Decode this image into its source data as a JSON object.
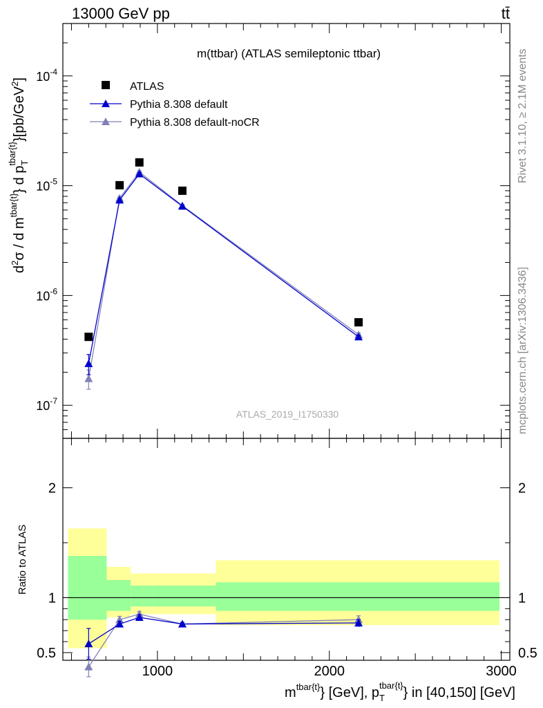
{
  "header": {
    "left": "13000 GeV pp",
    "right": "tt̄"
  },
  "side": {
    "rivet": "Rivet 3.1.10, ≥ 2.1M events",
    "mcplots": "mcplots.cern.ch [arXiv:1306.3436]"
  },
  "colors": {
    "atlas": "#000000",
    "default": "#0000cc",
    "noCR": "#8080b8",
    "band_inner": "#99ff99",
    "band_outer": "#ffff99"
  },
  "chart_data": [
    {
      "type": "scatter",
      "title": "m(ttbar) (ATLAS semileptonic ttbar)",
      "watermark": "ATLAS_2019_I1750330",
      "ylabel": "d²σ / d m^{tbar{t}} d p_T^{tbar{t}} [pb/GeV²]",
      "yscale": "log",
      "ylim": [
        5e-08,
        0.0003
      ],
      "xlim": [
        450,
        3050
      ],
      "ytick_labels": [
        "10^{-7}",
        "10^{-6}",
        "10^{-5}",
        "10^{-4}"
      ],
      "legend_position": "top-left",
      "series": [
        {
          "name": "ATLAS",
          "marker": "square",
          "x": [
            600,
            780,
            895,
            1145,
            2170
          ],
          "y": [
            4.2e-07,
            1.01e-05,
            1.63e-05,
            9e-06,
            5.7e-07
          ]
        },
        {
          "name": "Pythia 8.308 default",
          "marker": "triangle",
          "x": [
            600,
            780,
            895,
            1145,
            2170
          ],
          "y": [
            2.4e-07,
            7.4e-06,
            1.28e-05,
            6.5e-06,
            4.2e-07
          ],
          "yerr": [
            5e-08,
            3e-07,
            4e-07,
            1.5e-07,
            1.5e-08
          ]
        },
        {
          "name": "Pythia 8.308 default-noCR",
          "marker": "triangle",
          "x": [
            600,
            780,
            895,
            1145,
            2170
          ],
          "y": [
            1.75e-07,
            7.7e-06,
            1.33e-05,
            6.6e-06,
            4.4e-07
          ],
          "yerr": [
            3.5e-08,
            3e-07,
            4e-07,
            1.5e-07,
            1.5e-08
          ]
        }
      ]
    },
    {
      "type": "scatter",
      "ylabel": "Ratio to ATLAS",
      "xlabel": "m^{tbar{t}} [GeV], p_T^{tbar{t}} in [40,150] [GeV]",
      "ylim": [
        0.43,
        2.45
      ],
      "xlim": [
        450,
        3050
      ],
      "x_ticks": [
        1000,
        2000,
        3000
      ],
      "x_tick_labels": [
        "1000",
        "2000",
        "3000"
      ],
      "y_ticks": [
        0.5,
        1,
        2
      ],
      "y_tick_labels": [
        "0.5",
        "1",
        "2"
      ],
      "bands": [
        {
          "x0": 480,
          "x1": 705,
          "inner": [
            0.8,
            1.38
          ],
          "outer": [
            0.54,
            1.63
          ]
        },
        {
          "x0": 705,
          "x1": 845,
          "inner": [
            0.88,
            1.16
          ],
          "outer": [
            0.82,
            1.28
          ]
        },
        {
          "x0": 845,
          "x1": 980,
          "inner": [
            0.92,
            1.11
          ],
          "outer": [
            0.85,
            1.22
          ]
        },
        {
          "x0": 980,
          "x1": 1340,
          "inner": [
            0.92,
            1.11
          ],
          "outer": [
            0.85,
            1.22
          ]
        },
        {
          "x0": 1340,
          "x1": 2990,
          "inner": [
            0.88,
            1.14
          ],
          "outer": [
            0.75,
            1.34
          ]
        }
      ],
      "series": [
        {
          "name": "Pythia 8.308 default",
          "x": [
            600,
            780,
            895,
            1145,
            2170
          ],
          "y": [
            0.58,
            0.76,
            0.82,
            0.76,
            0.77
          ],
          "yerr": [
            0.14,
            0.025,
            0.025,
            0.015,
            0.03
          ]
        },
        {
          "name": "Pythia 8.308 default-noCR",
          "x": [
            600,
            780,
            895,
            1145,
            2170
          ],
          "y": [
            0.37,
            0.8,
            0.85,
            0.76,
            0.8
          ],
          "yerr": [
            0.09,
            0.03,
            0.025,
            0.015,
            0.035
          ]
        }
      ]
    }
  ]
}
